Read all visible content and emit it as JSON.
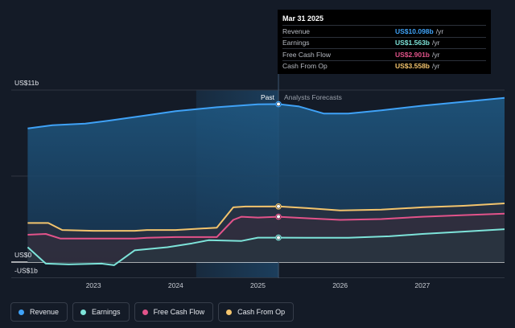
{
  "chart_data": {
    "type": "area",
    "ylim": [
      -1,
      11
    ],
    "y_tick_labels": [
      "US$11b",
      "US$0",
      "-US$1b"
    ],
    "x_tick_labels": [
      "2023",
      "2024",
      "2025",
      "2026",
      "2027"
    ],
    "period_labels": {
      "past": "Past",
      "forecast": "Analysts Forecasts"
    },
    "series": [
      {
        "name": "Revenue",
        "color": "#3fa2f7",
        "points": [
          [
            2022.2,
            8.55
          ],
          [
            2022.5,
            8.75
          ],
          [
            2022.9,
            8.85
          ],
          [
            2023.2,
            9.05
          ],
          [
            2023.6,
            9.35
          ],
          [
            2024.0,
            9.65
          ],
          [
            2024.5,
            9.9
          ],
          [
            2025.0,
            10.09
          ],
          [
            2025.25,
            10.098
          ],
          [
            2025.5,
            9.95
          ],
          [
            2025.8,
            9.5
          ],
          [
            2026.1,
            9.5
          ],
          [
            2026.5,
            9.7
          ],
          [
            2027.0,
            10.0
          ],
          [
            2027.5,
            10.25
          ],
          [
            2028.0,
            10.5
          ]
        ]
      },
      {
        "name": "Earnings",
        "color": "#7de3d9",
        "points": [
          [
            2022.2,
            0.95
          ],
          [
            2022.42,
            -0.1
          ],
          [
            2022.7,
            -0.15
          ],
          [
            2023.1,
            -0.1
          ],
          [
            2023.25,
            -0.2
          ],
          [
            2023.5,
            0.75
          ],
          [
            2023.9,
            0.95
          ],
          [
            2024.2,
            1.2
          ],
          [
            2024.4,
            1.4
          ],
          [
            2024.8,
            1.35
          ],
          [
            2025.0,
            1.563
          ],
          [
            2025.25,
            1.563
          ],
          [
            2025.6,
            1.55
          ],
          [
            2026.1,
            1.55
          ],
          [
            2026.6,
            1.65
          ],
          [
            2027.0,
            1.8
          ],
          [
            2027.5,
            1.95
          ],
          [
            2028.0,
            2.1
          ]
        ]
      },
      {
        "name": "Free Cash Flow",
        "color": "#e2538a",
        "points": [
          [
            2022.2,
            1.75
          ],
          [
            2022.42,
            1.8
          ],
          [
            2022.6,
            1.5
          ],
          [
            2023.0,
            1.5
          ],
          [
            2023.5,
            1.5
          ],
          [
            2023.65,
            1.55
          ],
          [
            2024.0,
            1.6
          ],
          [
            2024.5,
            1.6
          ],
          [
            2024.7,
            2.7
          ],
          [
            2024.8,
            2.9
          ],
          [
            2025.0,
            2.85
          ],
          [
            2025.25,
            2.901
          ],
          [
            2025.6,
            2.8
          ],
          [
            2026.0,
            2.7
          ],
          [
            2026.5,
            2.75
          ],
          [
            2027.0,
            2.9
          ],
          [
            2027.5,
            3.0
          ],
          [
            2028.0,
            3.1
          ]
        ]
      },
      {
        "name": "Cash From Op",
        "color": "#f3c46d",
        "points": [
          [
            2022.2,
            2.5
          ],
          [
            2022.45,
            2.5
          ],
          [
            2022.62,
            2.05
          ],
          [
            2023.0,
            2.0
          ],
          [
            2023.5,
            2.0
          ],
          [
            2023.65,
            2.05
          ],
          [
            2024.0,
            2.05
          ],
          [
            2024.5,
            2.2
          ],
          [
            2024.7,
            3.5
          ],
          [
            2024.85,
            3.55
          ],
          [
            2025.0,
            3.55
          ],
          [
            2025.25,
            3.558
          ],
          [
            2025.6,
            3.45
          ],
          [
            2026.0,
            3.3
          ],
          [
            2026.5,
            3.35
          ],
          [
            2027.0,
            3.5
          ],
          [
            2027.5,
            3.6
          ],
          [
            2028.0,
            3.75
          ]
        ]
      }
    ]
  },
  "tooltip": {
    "date": "Mar 31 2025",
    "rows": [
      {
        "label": "Revenue",
        "value": "US$10.098b",
        "unit": "/yr",
        "color": "#3fa2f7"
      },
      {
        "label": "Earnings",
        "value": "US$1.563b",
        "unit": "/yr",
        "color": "#7de3d9"
      },
      {
        "label": "Free Cash Flow",
        "value": "US$2.901b",
        "unit": "/yr",
        "color": "#e2538a"
      },
      {
        "label": "Cash From Op",
        "value": "US$3.558b",
        "unit": "/yr",
        "color": "#f3c46d"
      }
    ]
  },
  "legend": [
    {
      "label": "Revenue",
      "color": "#3fa2f7"
    },
    {
      "label": "Earnings",
      "color": "#7de3d9"
    },
    {
      "label": "Free Cash Flow",
      "color": "#e2538a"
    },
    {
      "label": "Cash From Op",
      "color": "#f3c46d"
    }
  ]
}
